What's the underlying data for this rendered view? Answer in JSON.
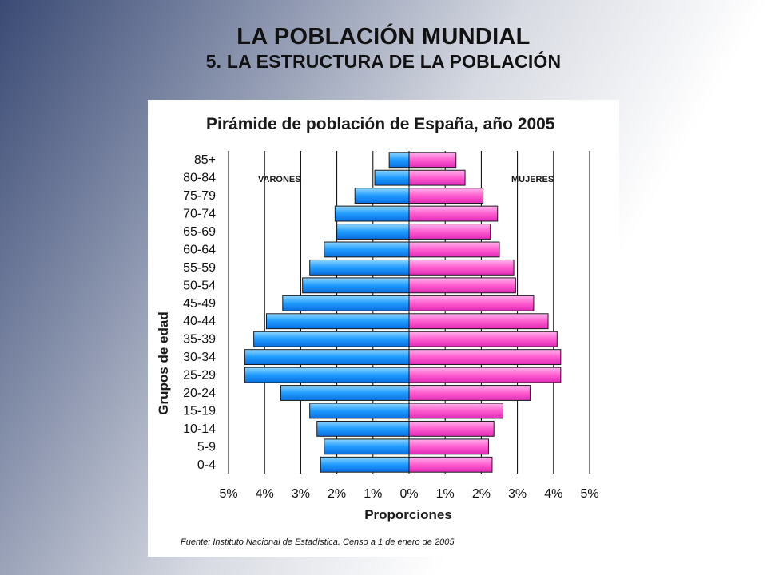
{
  "slide": {
    "title": "LA POBLACIÓN MUNDIAL",
    "subtitle": "5. LA ESTRUCTURA DE LA POBLACIÓN"
  },
  "colors": {
    "male": "#1f9cff",
    "female": "#ff5ecf",
    "grid": "#000000"
  },
  "chart_data": {
    "type": "bar",
    "orientation": "horizontal",
    "title": "Pirámide de población de España, año 2005",
    "ylabel": "Grupos de edad",
    "xlabel": "Proporciones",
    "xlim": [
      -5,
      5
    ],
    "x_ticks": [
      "5%",
      "4%",
      "3%",
      "2%",
      "1%",
      "0%",
      "1%",
      "2%",
      "3%",
      "4%",
      "5%"
    ],
    "grid": true,
    "source": "Fuente: Instituto Nacional de Estadística. Censo a 1 de enero de 2005",
    "categories": [
      "85+",
      "80-84",
      "75-79",
      "70-74",
      "65-69",
      "60-64",
      "55-59",
      "50-54",
      "45-49",
      "40-44",
      "35-39",
      "30-34",
      "25-29",
      "20-24",
      "15-19",
      "10-14",
      "5-9",
      "0-4"
    ],
    "series": [
      {
        "name": "VARONES",
        "values": [
          0.55,
          0.95,
          1.5,
          2.05,
          2.0,
          2.35,
          2.75,
          2.95,
          3.5,
          3.95,
          4.3,
          4.55,
          4.55,
          3.55,
          2.75,
          2.55,
          2.35,
          2.45
        ]
      },
      {
        "name": "MUJERES",
        "values": [
          1.3,
          1.55,
          2.05,
          2.45,
          2.25,
          2.5,
          2.9,
          2.95,
          3.45,
          3.85,
          4.1,
          4.2,
          4.2,
          3.35,
          2.6,
          2.35,
          2.2,
          2.3
        ]
      }
    ]
  }
}
